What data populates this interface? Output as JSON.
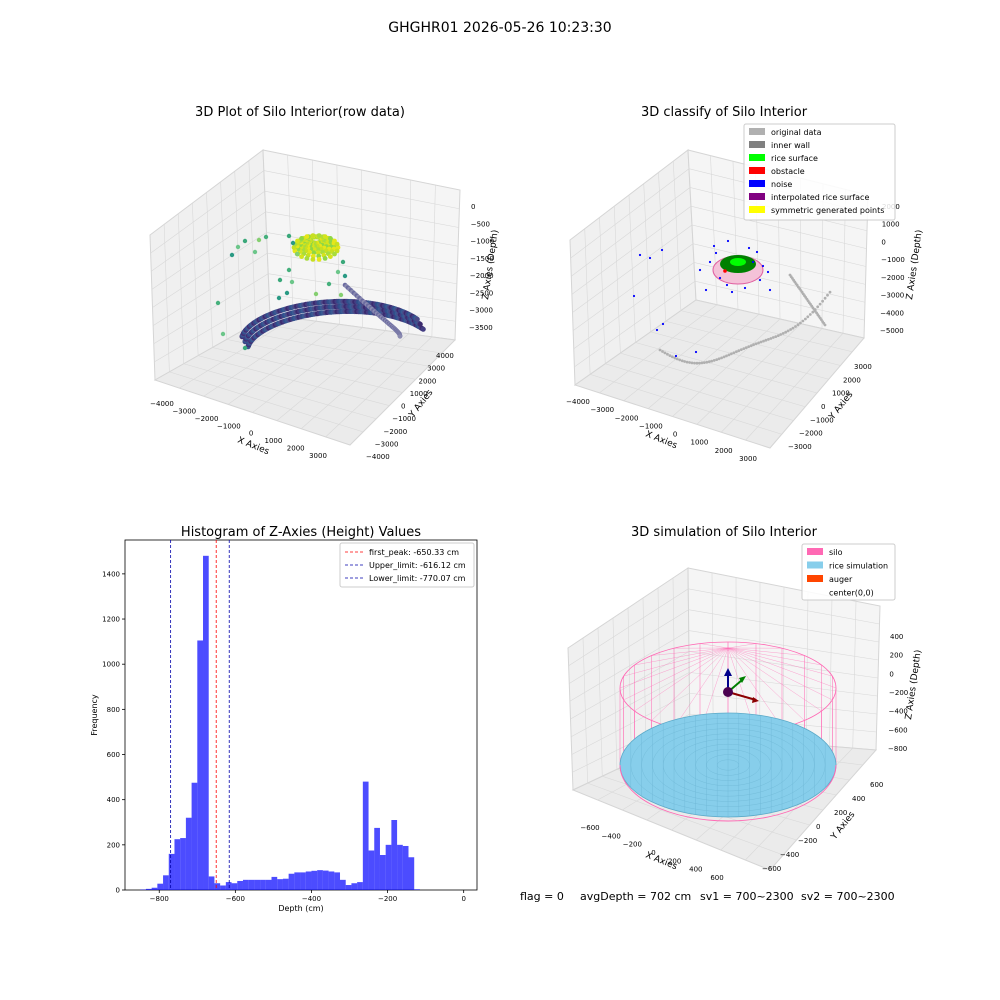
{
  "suptitle": "GHGHR01 2026-05-26 10:23:30",
  "footer": {
    "flag": "flag = 0",
    "avg_depth": "avgDepth = 702 cm",
    "sv1": "sv1 = 700~2300",
    "sv2": "sv2 = 700~2300"
  },
  "panels": {
    "p1": {
      "title": "3D Plot of Silo Interior(row data)",
      "xlabel": "X Axies",
      "ylabel": "Y Axies",
      "zlabel": "Z Axies (Depth)",
      "xticks": [
        "−4000",
        "−3000",
        "−2000",
        "−1000",
        "0",
        "1000",
        "2000",
        "3000"
      ],
      "yticks": [
        "−4000",
        "−3000",
        "−2000",
        "−1000",
        "0",
        "1000",
        "2000",
        "3000",
        "4000"
      ],
      "zticks": [
        "0",
        "−500",
        "−1000",
        "−1500",
        "−2000",
        "−2500",
        "−3000",
        "−3500"
      ]
    },
    "p2": {
      "title": "3D classify of Silo Interior",
      "xlabel": "X Axies",
      "ylabel": "Y Axies",
      "zlabel": "Z Axies (Depth)",
      "xticks": [
        "−4000",
        "−3000",
        "−2000",
        "−1000",
        "0",
        "1000",
        "2000",
        "3000"
      ],
      "yticks": [
        "−3000",
        "−2000",
        "−1000",
        "0",
        "1000",
        "2000",
        "3000"
      ],
      "zticks": [
        "2000",
        "1000",
        "0",
        "−1000",
        "−2000",
        "−3000",
        "−4000",
        "−5000"
      ],
      "legend": [
        {
          "label": "original data",
          "color": "#b0b0b0"
        },
        {
          "label": "inner wall",
          "color": "#808080"
        },
        {
          "label": "rice surface",
          "color": "#00ff00"
        },
        {
          "label": "obstacle",
          "color": "#ff0000"
        },
        {
          "label": "noise",
          "color": "#0000ff"
        },
        {
          "label": "interpolated rice surface",
          "color": "#800080"
        },
        {
          "label": "symmetric generated points",
          "color": "#ffff00"
        }
      ]
    },
    "p4": {
      "title": "3D simulation of Silo Interior",
      "xlabel": "X Axies",
      "ylabel": "Y Axies",
      "zlabel": "Z Axies (Depth)",
      "xticks": [
        "−600",
        "−400",
        "−200",
        "0",
        "200",
        "400",
        "600"
      ],
      "yticks": [
        "−600",
        "−400",
        "−200",
        "0",
        "200",
        "400",
        "600"
      ],
      "zticks": [
        "400",
        "200",
        "0",
        "−200",
        "−400",
        "−600",
        "−800"
      ],
      "legend": [
        {
          "label": "silo",
          "color": "#ff69b4"
        },
        {
          "label": "rice simulation",
          "color": "#87ceeb"
        },
        {
          "label": "auger",
          "color": "#ff4500"
        },
        {
          "label": "center(0,0)",
          "color": ""
        }
      ]
    }
  },
  "chart_data": [
    {
      "type": "bar",
      "title": "Histogram of Z-Axies (Height) Values",
      "xlabel": "Depth (cm)",
      "ylabel": "Frequency",
      "xlim": [
        -890,
        35
      ],
      "ylim": [
        0,
        1550
      ],
      "xticks": [
        -800,
        -600,
        -400,
        -200,
        0
      ],
      "yticks": [
        0,
        200,
        400,
        600,
        800,
        1000,
        1200,
        1400
      ],
      "bar_color": "#0000ff",
      "bin_width": 15,
      "bin_starts": [
        -850,
        -835,
        -820,
        -805,
        -790,
        -775,
        -760,
        -745,
        -730,
        -715,
        -700,
        -685,
        -670,
        -655,
        -640,
        -625,
        -610,
        -595,
        -580,
        -565,
        -550,
        -535,
        -520,
        -505,
        -490,
        -475,
        -460,
        -445,
        -430,
        -415,
        -400,
        -385,
        -370,
        -355,
        -340,
        -325,
        -310,
        -295,
        -280,
        -265,
        -250,
        -235,
        -220,
        -205,
        -190,
        -175,
        -160,
        -145,
        -130,
        -115,
        -100,
        -85,
        -70,
        -55,
        -40,
        -25,
        -10
      ],
      "values": [
        2,
        5,
        10,
        28,
        65,
        160,
        225,
        230,
        320,
        475,
        1105,
        1480,
        60,
        30,
        20,
        35,
        30,
        40,
        45,
        45,
        45,
        45,
        45,
        58,
        48,
        50,
        72,
        78,
        78,
        82,
        85,
        88,
        86,
        82,
        78,
        45,
        22,
        30,
        35,
        480,
        175,
        275,
        155,
        200,
        310,
        200,
        195,
        145,
        3,
        0,
        0,
        0,
        0,
        0,
        0,
        0,
        0
      ],
      "reference_lines": [
        {
          "name": "first_peak: -650.33 cm",
          "x": -650.33,
          "color": "#ff0000"
        },
        {
          "name": "Upper_limit: -616.12 cm",
          "x": -616.12,
          "color": "#0000aa"
        },
        {
          "name": "Lower_limit: -770.07 cm",
          "x": -770.07,
          "color": "#0000aa"
        }
      ]
    }
  ]
}
